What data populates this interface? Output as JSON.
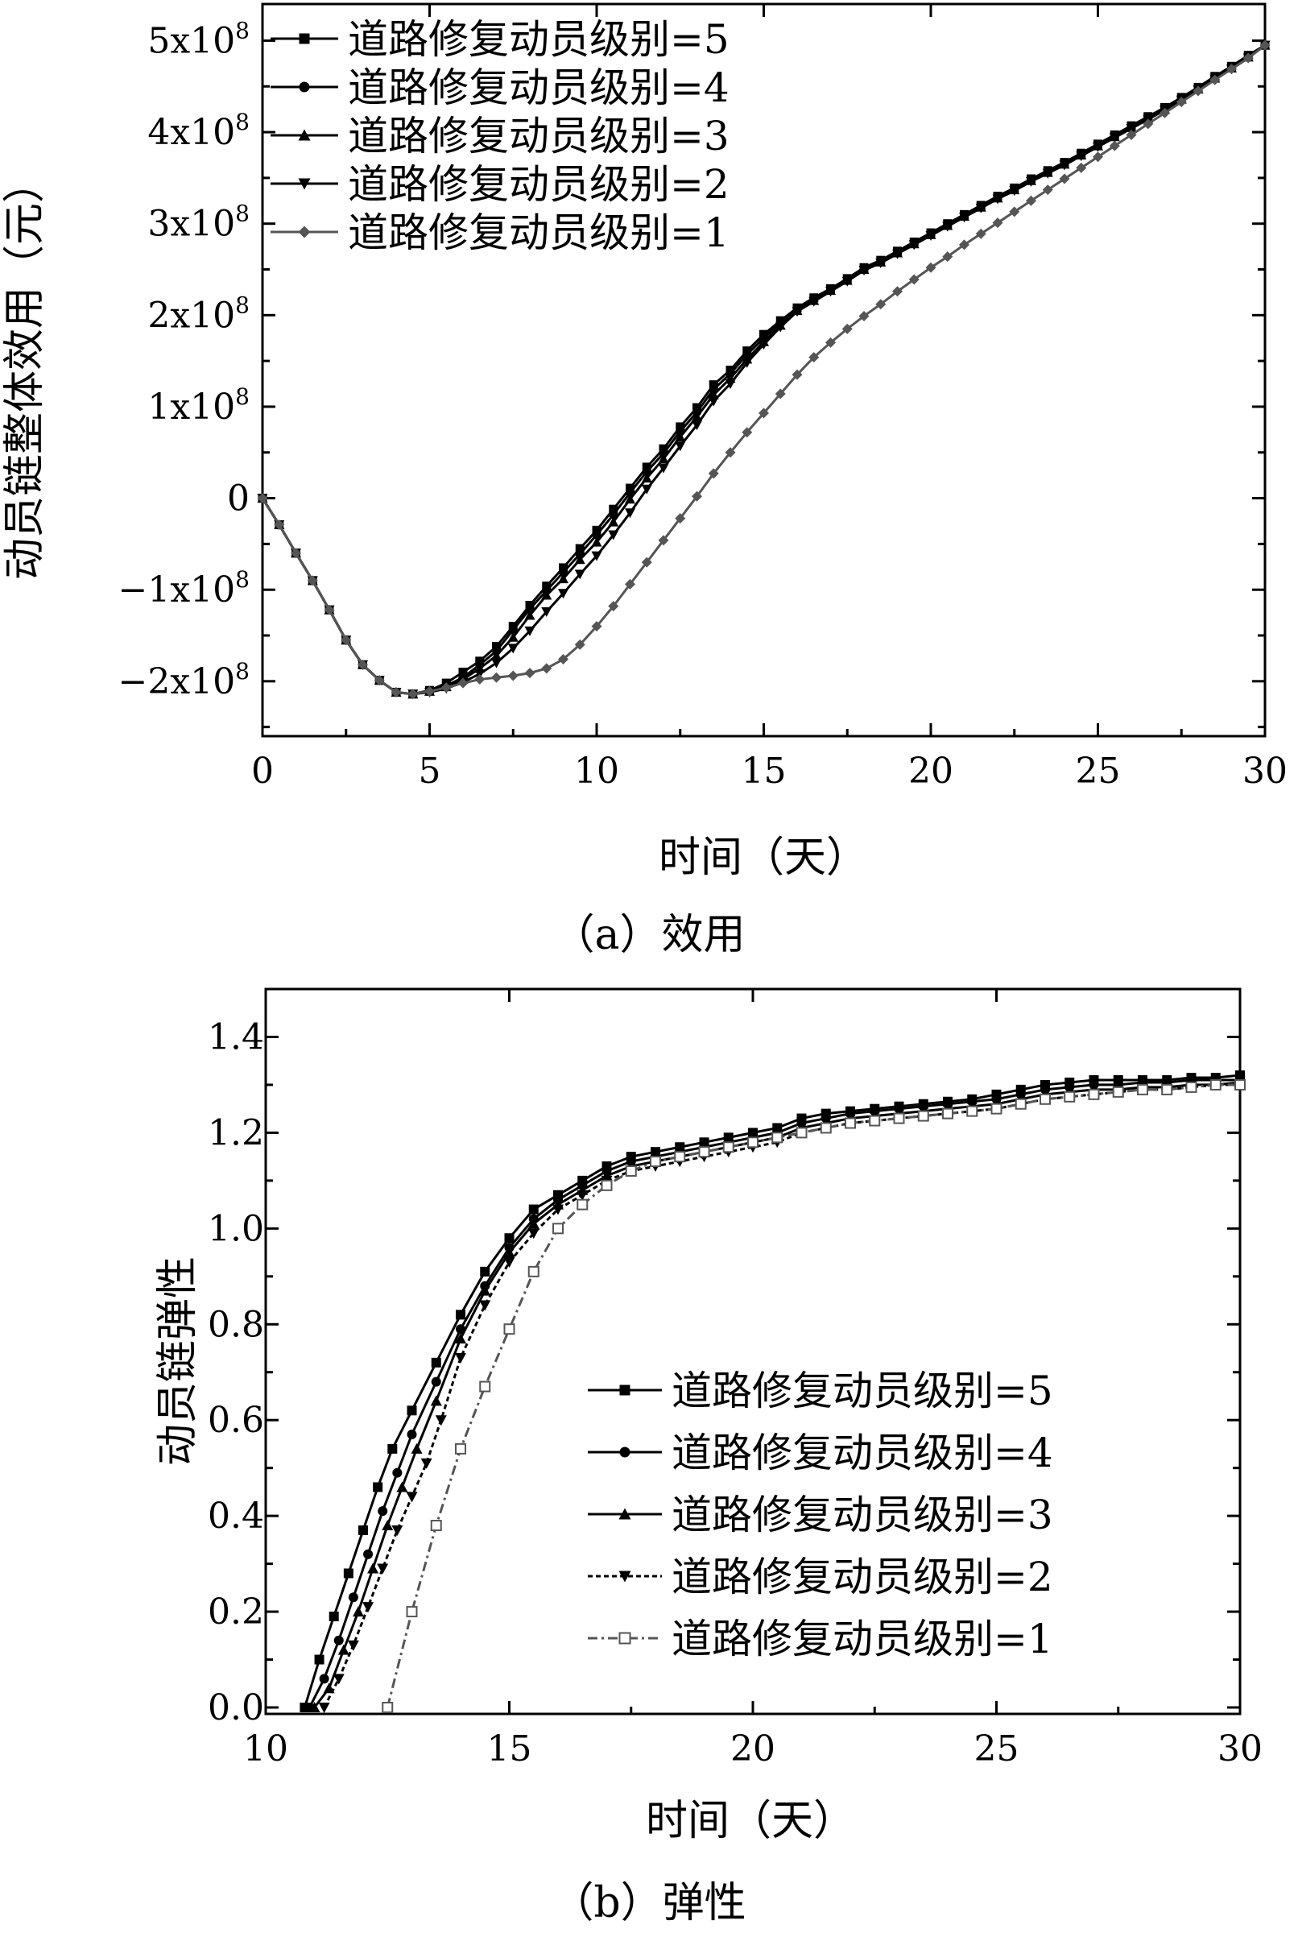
{
  "chart_data": [
    {
      "type": "line",
      "panel": "a",
      "caption": "（a）效用",
      "xlabel": "时间（天）",
      "ylabel": "动员链整体效用（元）",
      "xlim": [
        0,
        30
      ],
      "ylim": [
        -260000000,
        540000000
      ],
      "xticks": [
        0,
        5,
        10,
        15,
        20,
        25,
        30
      ],
      "xtick_labels": [
        "0",
        "5",
        "10",
        "15",
        "20",
        "25",
        "30"
      ],
      "yticks": [
        500000000,
        400000000,
        300000000,
        200000000,
        100000000,
        0,
        -100000000,
        -200000000
      ],
      "ytick_labels": [
        {
          "base": "5x10",
          "exp": "8"
        },
        {
          "base": "4x10",
          "exp": "8"
        },
        {
          "base": "3x10",
          "exp": "8"
        },
        {
          "base": "2x10",
          "exp": "8"
        },
        {
          "base": "1x10",
          "exp": "8"
        },
        {
          "base": "0",
          "exp": ""
        },
        {
          "base": "−1x10",
          "exp": "8"
        },
        {
          "base": "−2x10",
          "exp": "8"
        }
      ],
      "legend_position": "top-left",
      "x": [
        0,
        0.5,
        1,
        1.5,
        2,
        2.5,
        3,
        3.5,
        4,
        4.5,
        5,
        5.5,
        6,
        6.5,
        7,
        7.5,
        8,
        8.5,
        9,
        9.5,
        10,
        10.5,
        11,
        11.5,
        12,
        12.5,
        13,
        13.5,
        14,
        14.5,
        15,
        15.5,
        16,
        16.5,
        17,
        17.5,
        18,
        18.5,
        19,
        19.5,
        20,
        20.5,
        21,
        21.5,
        22,
        22.5,
        23,
        23.5,
        24,
        24.5,
        25,
        25.5,
        26,
        26.5,
        27,
        27.5,
        28,
        28.5,
        29,
        29.5,
        30
      ],
      "series": [
        {
          "name": "道路修复动员级别=5",
          "marker": "square",
          "color": "#000000",
          "values": [
            0,
            -29,
            -60,
            -90,
            -122,
            -155,
            -182,
            -199,
            -212,
            -214,
            -210,
            -202,
            -190,
            -178,
            -162,
            -140,
            -117,
            -96,
            -76,
            -55,
            -35,
            -12,
            11,
            34,
            54,
            78,
            99,
            124,
            140,
            161,
            179,
            194,
            208,
            219,
            229,
            240,
            252,
            260,
            270,
            280,
            290,
            300,
            310,
            320,
            330,
            339,
            349,
            358,
            367,
            377,
            387,
            397,
            407,
            417,
            427,
            438,
            449,
            461,
            472,
            484,
            495
          ]
        },
        {
          "name": "道路修复动员级别=4",
          "marker": "circle",
          "color": "#000000",
          "values": [
            0,
            -29,
            -60,
            -90,
            -122,
            -155,
            -182,
            -199,
            -212,
            -214,
            -211,
            -205,
            -196,
            -182,
            -167,
            -144,
            -121,
            -101,
            -81,
            -61,
            -40,
            -18,
            6,
            29,
            49,
            73,
            94,
            119,
            136,
            157,
            175,
            192,
            207,
            218,
            228,
            239,
            251,
            259,
            269,
            279,
            289,
            299,
            309,
            319,
            329,
            338,
            348,
            357,
            366,
            376,
            386,
            396,
            406,
            416,
            426,
            437,
            448,
            460,
            471,
            483,
            495
          ]
        },
        {
          "name": "道路修复动员级别=3",
          "marker": "triangle-up",
          "color": "#000000",
          "values": [
            0,
            -29,
            -60,
            -90,
            -122,
            -155,
            -182,
            -199,
            -212,
            -214,
            -211,
            -206,
            -198,
            -186,
            -172,
            -152,
            -128,
            -106,
            -88,
            -67,
            -48,
            -26,
            -1,
            22,
            43,
            67,
            89,
            113,
            131,
            152,
            171,
            189,
            205,
            216,
            227,
            238,
            250,
            258,
            268,
            278,
            288,
            298,
            308,
            318,
            328,
            337,
            347,
            356,
            365,
            375,
            385,
            395,
            405,
            415,
            425,
            436,
            447,
            459,
            470,
            482,
            495
          ]
        },
        {
          "name": "道路修复动员级别=2",
          "marker": "triangle-down",
          "color": "#000000",
          "values": [
            0,
            -29,
            -60,
            -90,
            -122,
            -155,
            -182,
            -199,
            -212,
            -214,
            -212,
            -208,
            -201,
            -192,
            -180,
            -164,
            -145,
            -124,
            -104,
            -83,
            -63,
            -40,
            -16,
            10,
            33,
            57,
            80,
            106,
            125,
            148,
            168,
            187,
            204,
            215,
            226,
            237,
            249,
            257,
            267,
            277,
            287,
            297,
            307,
            317,
            327,
            336,
            346,
            355,
            364,
            374,
            384,
            394,
            404,
            414,
            424,
            435,
            446,
            458,
            469,
            481,
            495
          ]
        },
        {
          "name": "道路修复动员级别=1",
          "marker": "diamond",
          "color": "#555555",
          "values": [
            0,
            -29,
            -60,
            -90,
            -122,
            -155,
            -182,
            -199,
            -212,
            -214,
            -211,
            -207,
            -202,
            -198,
            -196,
            -194,
            -191,
            -186,
            -176,
            -160,
            -140,
            -118,
            -94,
            -70,
            -46,
            -22,
            2,
            27,
            50,
            72,
            93,
            114,
            135,
            154,
            170,
            185,
            199,
            212,
            226,
            239,
            252,
            264,
            277,
            289,
            301,
            313,
            325,
            337,
            349,
            361,
            373,
            385,
            397,
            409,
            421,
            433,
            445,
            457,
            469,
            481,
            495
          ]
        }
      ],
      "value_unit_scale": 1000000
    },
    {
      "type": "line",
      "panel": "b",
      "caption": "（b）弹性",
      "xlabel": "时间（天）",
      "ylabel": "动员链弹性",
      "xlim": [
        10,
        30
      ],
      "ylim": [
        0,
        1.5
      ],
      "xticks": [
        10,
        15,
        20,
        25,
        30
      ],
      "xtick_labels": [
        "10",
        "15",
        "20",
        "25",
        "30"
      ],
      "yticks": [
        1.4,
        1.2,
        1.0,
        0.8,
        0.6,
        0.4,
        0.2,
        0.0
      ],
      "ytick_labels": [
        "1.4",
        "1.2",
        "1.0",
        "0.8",
        "0.6",
        "0.4",
        "0.2",
        "0.0"
      ],
      "legend_position": "bottom-right",
      "series": [
        {
          "name": "道路修复动员级别=5",
          "marker": "square",
          "color": "#000000",
          "dash": "",
          "x": [
            10.8,
            11.1,
            11.4,
            11.7,
            12.0,
            12.3,
            12.6,
            13.0,
            13.5,
            14.0,
            14.5,
            15.0,
            15.5,
            16.0,
            16.5,
            17.0,
            17.5,
            18.0,
            18.5,
            19.0,
            19.5,
            20.0,
            20.5,
            21.0,
            21.5,
            22.0,
            22.5,
            23.0,
            23.5,
            24.0,
            24.5,
            25.0,
            25.5,
            26.0,
            26.5,
            27.0,
            27.5,
            28.0,
            28.5,
            29.0,
            29.5,
            30.0
          ],
          "y": [
            0.0,
            0.1,
            0.19,
            0.28,
            0.37,
            0.46,
            0.54,
            0.62,
            0.72,
            0.82,
            0.91,
            0.98,
            1.04,
            1.07,
            1.1,
            1.13,
            1.15,
            1.16,
            1.17,
            1.18,
            1.19,
            1.2,
            1.21,
            1.23,
            1.24,
            1.245,
            1.25,
            1.255,
            1.26,
            1.265,
            1.27,
            1.28,
            1.29,
            1.3,
            1.305,
            1.31,
            1.31,
            1.31,
            1.31,
            1.315,
            1.315,
            1.32
          ]
        },
        {
          "name": "道路修复动员级别=4",
          "marker": "circle",
          "color": "#000000",
          "dash": "",
          "x": [
            10.9,
            11.2,
            11.5,
            11.8,
            12.1,
            12.4,
            12.7,
            13.0,
            13.5,
            14.0,
            14.5,
            15.0,
            15.5,
            16.0,
            16.5,
            17.0,
            17.5,
            18.0,
            18.5,
            19.0,
            19.5,
            20.0,
            20.5,
            21.0,
            21.5,
            22.0,
            22.5,
            23.0,
            23.5,
            24.0,
            24.5,
            25.0,
            25.5,
            26.0,
            26.5,
            27.0,
            27.5,
            28.0,
            28.5,
            29.0,
            29.5,
            30.0
          ],
          "y": [
            0.0,
            0.06,
            0.14,
            0.23,
            0.32,
            0.41,
            0.49,
            0.57,
            0.68,
            0.79,
            0.88,
            0.96,
            1.02,
            1.06,
            1.09,
            1.12,
            1.14,
            1.15,
            1.16,
            1.17,
            1.18,
            1.19,
            1.2,
            1.22,
            1.23,
            1.24,
            1.245,
            1.25,
            1.255,
            1.26,
            1.265,
            1.27,
            1.28,
            1.29,
            1.295,
            1.3,
            1.3,
            1.305,
            1.305,
            1.31,
            1.31,
            1.31
          ]
        },
        {
          "name": "道路修复动员级别=3",
          "marker": "triangle-up",
          "color": "#000000",
          "dash": "",
          "x": [
            11.0,
            11.3,
            11.6,
            11.9,
            12.2,
            12.5,
            12.8,
            13.1,
            13.5,
            14.0,
            14.5,
            15.0,
            15.5,
            16.0,
            16.5,
            17.0,
            17.5,
            18.0,
            18.5,
            19.0,
            19.5,
            20.0,
            20.5,
            21.0,
            21.5,
            22.0,
            22.5,
            23.0,
            23.5,
            24.0,
            24.5,
            25.0,
            25.5,
            26.0,
            26.5,
            27.0,
            27.5,
            28.0,
            28.5,
            29.0,
            29.5,
            30.0
          ],
          "y": [
            0.0,
            0.04,
            0.12,
            0.2,
            0.29,
            0.38,
            0.46,
            0.54,
            0.64,
            0.77,
            0.87,
            0.95,
            1.01,
            1.05,
            1.08,
            1.11,
            1.13,
            1.14,
            1.15,
            1.16,
            1.17,
            1.18,
            1.19,
            1.21,
            1.22,
            1.23,
            1.235,
            1.24,
            1.245,
            1.25,
            1.255,
            1.26,
            1.27,
            1.28,
            1.285,
            1.29,
            1.29,
            1.295,
            1.295,
            1.3,
            1.3,
            1.305
          ]
        },
        {
          "name": "道路修复动员级别=2",
          "marker": "triangle-down",
          "color": "#000000",
          "dash": "6,4",
          "x": [
            11.2,
            11.5,
            11.8,
            12.1,
            12.4,
            12.7,
            13.0,
            13.3,
            13.6,
            14.0,
            14.5,
            15.0,
            15.5,
            16.0,
            16.5,
            17.0,
            17.5,
            18.0,
            18.5,
            19.0,
            19.5,
            20.0,
            20.5,
            21.0,
            21.5,
            22.0,
            22.5,
            23.0,
            23.5,
            24.0,
            24.5,
            25.0,
            25.5,
            26.0,
            26.5,
            27.0,
            27.5,
            28.0,
            28.5,
            29.0,
            29.5,
            30.0
          ],
          "y": [
            0.0,
            0.06,
            0.13,
            0.21,
            0.29,
            0.37,
            0.44,
            0.51,
            0.6,
            0.73,
            0.84,
            0.93,
            0.99,
            1.04,
            1.07,
            1.1,
            1.12,
            1.13,
            1.14,
            1.15,
            1.16,
            1.17,
            1.18,
            1.2,
            1.21,
            1.22,
            1.225,
            1.23,
            1.235,
            1.24,
            1.245,
            1.25,
            1.26,
            1.27,
            1.275,
            1.28,
            1.285,
            1.29,
            1.29,
            1.295,
            1.3,
            1.3
          ]
        },
        {
          "name": "道路修复动员级别=1",
          "marker": "open-square",
          "color": "#555555",
          "dash": "12,5,3,5",
          "x": [
            12.5,
            13.0,
            13.5,
            14.0,
            14.5,
            15.0,
            15.5,
            16.0,
            16.5,
            17.0,
            17.5,
            18.0,
            18.5,
            19.0,
            19.5,
            20.0,
            20.5,
            21.0,
            21.5,
            22.0,
            22.5,
            23.0,
            23.5,
            24.0,
            24.5,
            25.0,
            25.5,
            26.0,
            26.5,
            27.0,
            27.5,
            28.0,
            28.5,
            29.0,
            29.5,
            30.0
          ],
          "y": [
            0.0,
            0.2,
            0.38,
            0.54,
            0.67,
            0.79,
            0.91,
            1.0,
            1.05,
            1.09,
            1.12,
            1.14,
            1.15,
            1.16,
            1.17,
            1.18,
            1.19,
            1.2,
            1.21,
            1.22,
            1.225,
            1.23,
            1.235,
            1.24,
            1.245,
            1.25,
            1.26,
            1.27,
            1.275,
            1.28,
            1.285,
            1.29,
            1.29,
            1.295,
            1.3,
            1.3
          ]
        }
      ]
    }
  ]
}
